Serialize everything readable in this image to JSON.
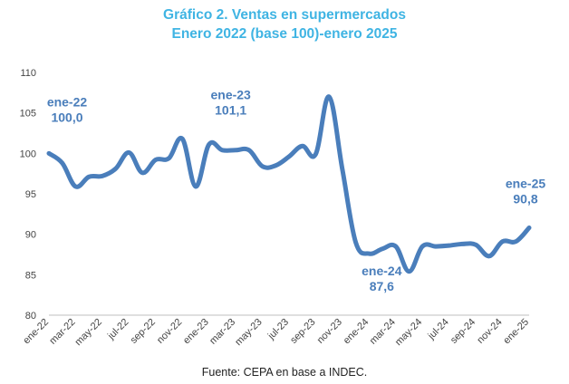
{
  "title": "Gráfico 2. Ventas en supermercados",
  "subtitle": "Enero 2022 (base 100)-enero 2025",
  "source": "Fuente: CEPA en base a INDEC.",
  "colors": {
    "title": "#3fb4e3",
    "line": "#4a7ebb",
    "annotation": "#4a7ebb"
  },
  "chart_data": {
    "type": "line",
    "title": "Gráfico 2. Ventas en supermercados",
    "subtitle": "Enero 2022 (base 100)-enero 2025",
    "xlabel": "",
    "ylabel": "",
    "ylim": [
      80,
      110
    ],
    "yticks": [
      80,
      85,
      90,
      95,
      100,
      105,
      110
    ],
    "grid": false,
    "x": [
      "ene-22",
      "feb-22",
      "mar-22",
      "abr-22",
      "may-22",
      "jun-22",
      "jul-22",
      "ago-22",
      "sep-22",
      "oct-22",
      "nov-22",
      "dic-22",
      "ene-23",
      "feb-23",
      "mar-23",
      "abr-23",
      "may-23",
      "jun-23",
      "jul-23",
      "ago-23",
      "sep-23",
      "oct-23",
      "nov-23",
      "dic-23",
      "ene-24",
      "feb-24",
      "mar-24",
      "abr-24",
      "may-24",
      "jun-24",
      "jul-24",
      "ago-24",
      "sep-24",
      "oct-24",
      "nov-24",
      "dic-24",
      "ene-25"
    ],
    "xtick_labels": [
      "ene-22",
      "mar-22",
      "may-22",
      "jul-22",
      "sep-22",
      "nov-22",
      "ene-23",
      "mar-23",
      "may-23",
      "jul-23",
      "sep-23",
      "nov-23",
      "ene-24",
      "mar-24",
      "may-24",
      "jul-24",
      "sep-24",
      "nov-24",
      "ene-25"
    ],
    "series": [
      {
        "values": [
          100.0,
          98.8,
          95.9,
          97.1,
          97.2,
          98.1,
          100.1,
          97.6,
          99.2,
          99.4,
          101.8,
          95.9,
          101.1,
          100.4,
          100.4,
          100.4,
          98.4,
          98.5,
          99.6,
          100.9,
          99.9,
          107.0,
          98.0,
          89.0,
          87.6,
          88.2,
          88.5,
          85.4,
          88.5,
          88.5,
          88.6,
          88.8,
          88.7,
          87.3,
          89.1,
          89.1,
          90.8
        ]
      }
    ],
    "annotations": [
      {
        "x": "ene-22",
        "label": "ene-22",
        "value_text": "100,0"
      },
      {
        "x": "ene-23",
        "label": "ene-23",
        "value_text": "101,1"
      },
      {
        "x": "ene-24",
        "label": "ene-24",
        "value_text": "87,6"
      },
      {
        "x": "ene-25",
        "label": "ene-25",
        "value_text": "90,8"
      }
    ]
  }
}
